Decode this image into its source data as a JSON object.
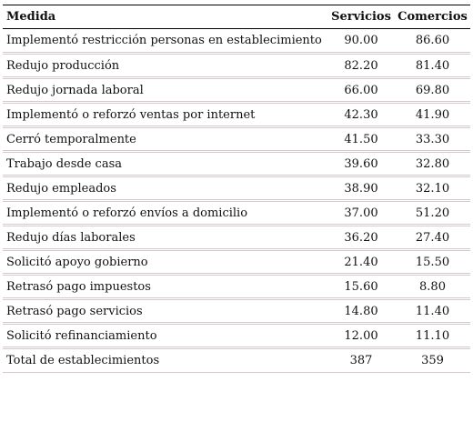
{
  "table": {
    "headers": [
      "Medida",
      "Servicios",
      "Comercios"
    ],
    "rows": [
      [
        "Implementó restricción personas en establecimiento",
        "90.00",
        "86.60"
      ],
      [
        "Redujo producción",
        "82.20",
        "81.40"
      ],
      [
        "Redujo jornada laboral",
        "66.00",
        "69.80"
      ],
      [
        "Implementó o reforzó ventas por internet",
        "42.30",
        "41.90"
      ],
      [
        "Cerró temporalmente",
        "41.50",
        "33.30"
      ],
      [
        "Trabajo desde casa",
        "39.60",
        "32.80"
      ],
      [
        "Redujo empleados",
        "38.90",
        "32.10"
      ],
      [
        "Implementó o reforzó envíos a domicilio",
        "37.00",
        "51.20"
      ],
      [
        "Redujo días laborales",
        "36.20",
        "27.40"
      ],
      [
        "Solicitó apoyo gobierno",
        "21.40",
        "15.50"
      ],
      [
        "Retrasó pago impuestos",
        "15.60",
        "8.80"
      ],
      [
        "Retrasó pago servicios",
        "14.80",
        "11.40"
      ],
      [
        "Solicitó refinanciamiento",
        "12.00",
        "11.10"
      ],
      [
        "Total de establecimientos",
        "387",
        "359"
      ]
    ]
  },
  "colors": {
    "rule": "#000000",
    "row_separator": "#d8c8cc"
  }
}
